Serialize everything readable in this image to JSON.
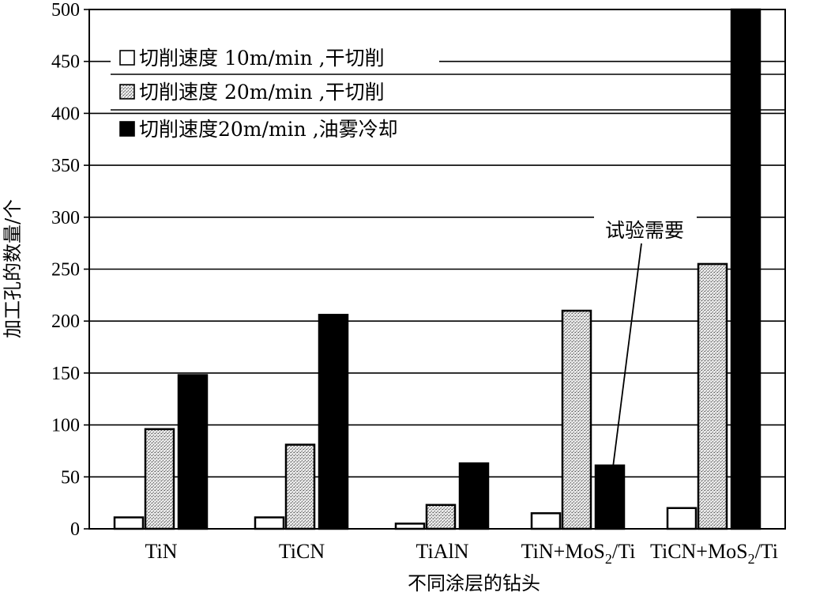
{
  "chart_data": {
    "type": "bar",
    "xlabel": "不同涂层的钻头",
    "ylabel": "加工孔的数量/个",
    "ylim": [
      0,
      500
    ],
    "yticks": [
      0,
      50,
      100,
      150,
      200,
      250,
      300,
      350,
      400,
      450,
      500
    ],
    "grid": true,
    "legend_position": "top-left",
    "categories": [
      {
        "pre": "TiN",
        "sub": "",
        "post": ""
      },
      {
        "pre": "TiCN",
        "sub": "",
        "post": ""
      },
      {
        "pre": "TiAlN",
        "sub": "",
        "post": ""
      },
      {
        "pre": "TiN+MoS",
        "sub": "2",
        "post": "/Ti"
      },
      {
        "pre": "TiCN+MoS",
        "sub": "2",
        "post": "/Ti"
      }
    ],
    "series": [
      {
        "name": "切削速度 10m/min ,干切削",
        "fill": "white",
        "values": [
          11,
          11,
          5,
          15,
          20
        ]
      },
      {
        "name": "切削速度 20m/min ,干切削",
        "fill": "dotted",
        "values": [
          96,
          81,
          23,
          210,
          255
        ]
      },
      {
        "name": "切削速度20m/min ,油雾冷却",
        "fill": "black",
        "values": [
          148,
          206,
          63,
          61,
          500
        ]
      }
    ],
    "annotation": {
      "text": "试验需要",
      "category_index": 3,
      "series_index": 2
    }
  }
}
